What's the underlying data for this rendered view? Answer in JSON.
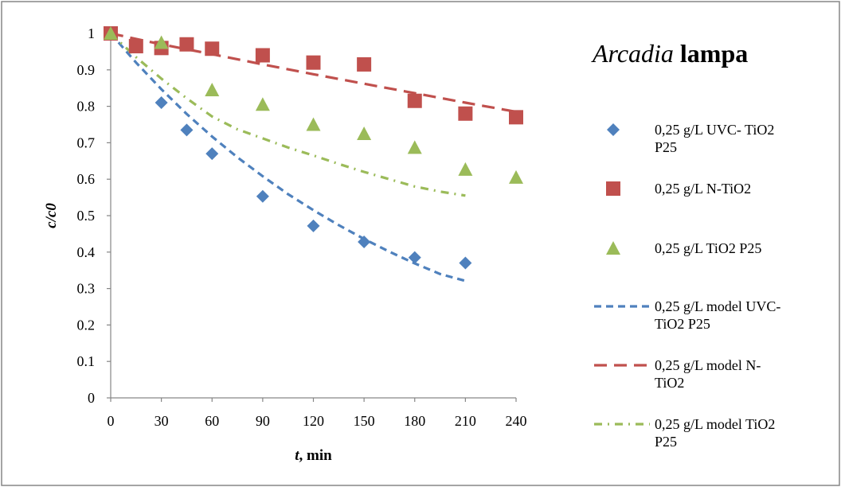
{
  "chart_data": {
    "type": "scatter",
    "title_parts": [
      {
        "text": "Arcadia",
        "style": "italic"
      },
      {
        "text": " lampa",
        "style": "bold"
      }
    ],
    "xlabel_parts": [
      {
        "text": "t",
        "style": "italic"
      },
      {
        "text": ", min",
        "style": "bold"
      }
    ],
    "ylabel": "c/c0",
    "xlim": [
      0,
      240
    ],
    "ylim": [
      0,
      1
    ],
    "xticks": [
      0,
      30,
      60,
      90,
      120,
      150,
      180,
      210,
      240
    ],
    "yticks": [
      0,
      0.1,
      0.2,
      0.3,
      0.4,
      0.5,
      0.6,
      0.7,
      0.8,
      0.9,
      1
    ],
    "grid": false,
    "legend_position": "right",
    "series": [
      {
        "name": "0,25 g/L UVC- TiO2 P25",
        "legend_lines": [
          "0,25 g/L UVC- TiO2",
          "P25"
        ],
        "kind": "scatter",
        "marker": "diamond",
        "color": "#4F81BD",
        "x": [
          0,
          30,
          45,
          60,
          90,
          120,
          150,
          180,
          210
        ],
        "y": [
          1.0,
          0.81,
          0.735,
          0.67,
          0.553,
          0.472,
          0.428,
          0.385,
          0.37
        ]
      },
      {
        "name": "0,25 g/L N-TiO2",
        "legend_lines": [
          "0,25 g/L N-TiO2"
        ],
        "kind": "scatter",
        "marker": "square",
        "color": "#C0504D",
        "x": [
          0,
          15,
          30,
          45,
          60,
          90,
          120,
          150,
          180,
          210,
          240
        ],
        "y": [
          1.0,
          0.965,
          0.96,
          0.97,
          0.958,
          0.94,
          0.92,
          0.915,
          0.815,
          0.78,
          0.77
        ]
      },
      {
        "name": "0,25 g/L TiO2 P25",
        "legend_lines": [
          "0,25 g/L TiO2 P25"
        ],
        "kind": "scatter",
        "marker": "triangle",
        "color": "#9BBB59",
        "x": [
          0,
          30,
          60,
          90,
          120,
          150,
          180,
          210,
          240
        ],
        "y": [
          1.0,
          0.975,
          0.845,
          0.805,
          0.75,
          0.725,
          0.687,
          0.627,
          0.605
        ]
      },
      {
        "name": "0,25 g/L model UVC-TiO2 P25",
        "legend_lines": [
          "0,25 g/L model UVC-",
          "TiO2 P25"
        ],
        "kind": "line",
        "dash": "dash",
        "color": "#4F81BD",
        "x": [
          0,
          15,
          30,
          45,
          60,
          75,
          90,
          105,
          120,
          135,
          150,
          165,
          180,
          195,
          210
        ],
        "y": [
          1.0,
          0.92,
          0.847,
          0.779,
          0.717,
          0.66,
          0.608,
          0.559,
          0.515,
          0.474,
          0.436,
          0.401,
          0.369,
          0.34,
          0.321
        ]
      },
      {
        "name": "0,25 g/L model N-TiO2",
        "legend_lines": [
          "0,25 g/L model N-",
          "TiO2"
        ],
        "kind": "line",
        "dash": "longdash",
        "color": "#C0504D",
        "x": [
          0,
          30,
          60,
          90,
          120,
          150,
          180,
          210,
          240
        ],
        "y": [
          1.0,
          0.97,
          0.943,
          0.915,
          0.888,
          0.862,
          0.836,
          0.81,
          0.785
        ]
      },
      {
        "name": "0,25 g/L model TiO2 P25",
        "legend_lines": [
          "0,25 g/L model TiO2",
          "P25"
        ],
        "kind": "line",
        "dash": "dashdot",
        "color": "#9BBB59",
        "x": [
          0,
          15,
          30,
          45,
          60,
          75,
          90,
          105,
          120,
          135,
          150,
          165,
          180,
          195,
          210
        ],
        "y": [
          1.0,
          0.935,
          0.876,
          0.822,
          0.772,
          0.737,
          0.712,
          0.687,
          0.665,
          0.642,
          0.62,
          0.6,
          0.58,
          0.566,
          0.555
        ]
      }
    ]
  }
}
